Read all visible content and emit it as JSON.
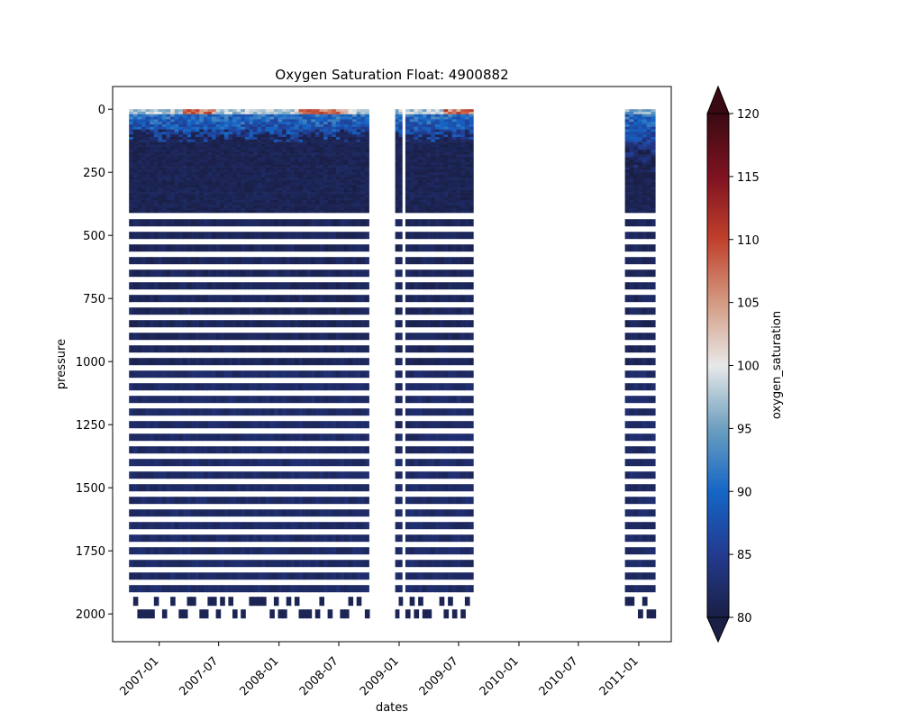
{
  "chart_data": {
    "type": "heatmap",
    "title": "Oxygen Saturation Float: 4900882",
    "xlabel": "dates",
    "ylabel": "pressure",
    "x_ticks": [
      "2007-01",
      "2007-07",
      "2008-01",
      "2008-07",
      "2009-01",
      "2009-07",
      "2010-01",
      "2010-07",
      "2011-01"
    ],
    "y_ticks": [
      0,
      250,
      500,
      750,
      1000,
      1250,
      1500,
      1750,
      2000
    ],
    "ylim": [
      2110,
      -90
    ],
    "xlim": [
      "2006-08-12",
      "2011-04-10"
    ],
    "y_inverted": true,
    "colorbar": {
      "label": "oxygen_saturation",
      "range": [
        80,
        120
      ],
      "ticks": [
        80,
        85,
        90,
        95,
        100,
        105,
        110,
        115,
        120
      ],
      "extend": "both",
      "colors": [
        "#1a1f45",
        "#233a8f",
        "#1566c6",
        "#6c9fbf",
        "#e8e8e8",
        "#d49a82",
        "#c0402c",
        "#7e1220",
        "#3a0a12"
      ]
    },
    "profile_segments": [
      {
        "start": "2006-10-01",
        "end": "2008-10-01"
      },
      {
        "start": "2008-12-20",
        "end": "2009-01-10"
      },
      {
        "start": "2009-01-20",
        "end": "2009-08-15"
      },
      {
        "start": "2010-11-20",
        "end": "2011-02-20"
      }
    ],
    "bottom_pressure": 2000
  }
}
